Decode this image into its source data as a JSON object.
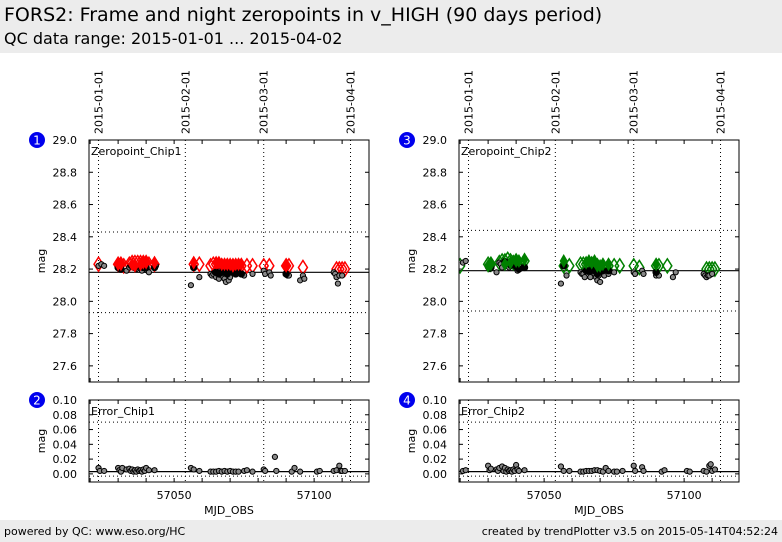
{
  "header": {
    "title": "FORS2: Frame and night zeropoints in v_HIGH (90 days period)",
    "subtitle": "QC data range: 2015-01-01 ... 2015-04-02"
  },
  "footer": {
    "left": "powered by QC: www.eso.org/HC",
    "right": "created by trendPlotter v3.5 on 2015-05-14T04:52:24"
  },
  "colors": {
    "badge": "#0000ee",
    "chip1_marker": "#ff0000",
    "chip2_marker": "#008000",
    "point_fill": "#888888",
    "night_fill": "#000000"
  },
  "chart_data": [
    {
      "id": "1",
      "type": "scatter",
      "title": "Zeropoint_Chip1",
      "badge": "1",
      "xlabel": "",
      "ylabel": "mag",
      "xlim": [
        57019.6,
        57119.6
      ],
      "ylim": [
        27.5,
        29.0
      ],
      "yticks": [
        27.6,
        27.8,
        28.0,
        28.2,
        28.4,
        28.6,
        28.8,
        29.0
      ],
      "ytick_labels": [
        "27.6",
        "27.8",
        "28.0",
        "28.2",
        "28.4",
        "28.6",
        "28.8",
        "29.0"
      ],
      "date_lines": [
        {
          "mjd": 57023,
          "label": "2015-01-01"
        },
        {
          "mjd": 57054,
          "label": "2015-02-01"
        },
        {
          "mjd": 57082,
          "label": "2015-03-01"
        },
        {
          "mjd": 57113,
          "label": "2015-04-01"
        }
      ],
      "reference_line": 28.18,
      "limit_lines": [
        28.43,
        27.93
      ],
      "marker_color": "#ff0000",
      "night_diamonds": {
        "x": [
          57023,
          57030,
          57031,
          57032,
          57034,
          57035,
          57036,
          57037,
          57038,
          57039,
          57040,
          57041,
          57043,
          57057,
          57059,
          57063,
          57064,
          57065,
          57066,
          57067,
          57068,
          57069,
          57071,
          57073,
          57074,
          57076,
          57078,
          57082,
          57084,
          57090,
          57091,
          57096,
          57108,
          57109,
          57110,
          57111
        ],
        "y": [
          28.23,
          28.23,
          28.23,
          28.22,
          28.23,
          28.24,
          28.24,
          28.24,
          28.24,
          28.24,
          28.24,
          28.23,
          28.23,
          28.23,
          28.23,
          28.22,
          28.23,
          28.23,
          28.23,
          28.22,
          28.22,
          28.22,
          28.22,
          28.22,
          28.22,
          28.22,
          28.22,
          28.22,
          28.22,
          28.22,
          28.22,
          28.21,
          28.2,
          28.2,
          28.2,
          28.2
        ]
      },
      "frames": {
        "x": [
          57023,
          57024,
          57025,
          57030,
          57030.5,
          57031,
          57033,
          57034,
          57034.5,
          57035,
          57036,
          57036.5,
          57037,
          57038,
          57038.5,
          57039,
          57040,
          57040.5,
          57041,
          57043,
          57043.5,
          57056,
          57057,
          57059,
          57063,
          57063.5,
          57064,
          57064.5,
          57065,
          57065.5,
          57066,
          57066.5,
          57067,
          57067.5,
          57068,
          57068.5,
          57069,
          57069.5,
          57070,
          57071,
          57072,
          57073,
          57075,
          57078,
          57082,
          57082.5,
          57084,
          57084.5,
          57090,
          57090.5,
          57091,
          57095,
          57096,
          57096.5,
          57107,
          57107.5,
          57108,
          57108.5,
          57109,
          57110
        ],
        "y": [
          28.22,
          28.23,
          28.22,
          28.21,
          28.2,
          28.21,
          28.19,
          28.21,
          28.22,
          28.22,
          28.21,
          28.2,
          28.22,
          28.21,
          28.19,
          28.22,
          28.21,
          28.19,
          28.18,
          28.21,
          28.22,
          28.1,
          28.21,
          28.15,
          28.17,
          28.16,
          28.17,
          28.18,
          28.15,
          28.17,
          28.14,
          28.19,
          28.16,
          28.2,
          28.14,
          28.12,
          28.17,
          28.13,
          28.15,
          28.18,
          28.17,
          28.18,
          28.16,
          28.17,
          28.19,
          28.17,
          28.18,
          28.16,
          28.17,
          28.16,
          28.16,
          28.13,
          28.16,
          28.14,
          28.18,
          28.17,
          28.15,
          28.11,
          28.16,
          28.16
        ]
      },
      "nights": {
        "x": [
          57030,
          57031,
          57035,
          57036,
          57038,
          57039,
          57040,
          57043,
          57057,
          57065,
          57066,
          57067,
          57068,
          57069,
          57070,
          57071,
          57072,
          57073,
          57074,
          57090
        ],
        "y": [
          28.21,
          28.2,
          28.22,
          28.21,
          28.22,
          28.21,
          28.21,
          28.21,
          28.21,
          28.18,
          28.17,
          28.18,
          28.18,
          28.17,
          28.19,
          28.18,
          28.17,
          28.18,
          28.17,
          28.17
        ]
      }
    },
    {
      "id": "2",
      "type": "scatter",
      "title": "Error_Chip1",
      "badge": "2",
      "xlabel": "MJD_OBS",
      "ylabel": "mag",
      "xlim": [
        57019.6,
        57119.6
      ],
      "ylim": [
        -0.011,
        0.1
      ],
      "yticks": [
        0.0,
        0.02,
        0.04,
        0.06,
        0.08,
        0.1
      ],
      "ytick_labels": [
        "0.00",
        "0.02",
        "0.04",
        "0.06",
        "0.08",
        "0.10"
      ],
      "xticks": [
        57050,
        57100
      ],
      "xtick_labels": [
        "57050",
        "57100"
      ],
      "date_lines_mjd": [
        57023,
        57054,
        57082,
        57113
      ],
      "reference_line": 0.003,
      "limit_lines": [
        0.07,
        -0.003
      ],
      "frames": {
        "x": [
          57023,
          57023.5,
          57025,
          57030,
          57030.5,
          57031,
          57031.5,
          57033,
          57034,
          57034.5,
          57035,
          57035.5,
          57036,
          57036.5,
          57037,
          57037.5,
          57038,
          57038.5,
          57039,
          57039.5,
          57040,
          57041,
          57043,
          57056,
          57057,
          57059,
          57063,
          57064,
          57065,
          57066,
          57067,
          57068,
          57069,
          57070,
          57071,
          57072,
          57073,
          57075,
          57076,
          57078,
          57082,
          57082.5,
          57086,
          57086.5,
          57092,
          57093,
          57095,
          57101,
          57102,
          57107,
          57108,
          57109,
          57109.5,
          57110,
          57111
        ],
        "y": [
          0.008,
          0.004,
          0.004,
          0.008,
          0.005,
          0.003,
          0.008,
          0.006,
          0.007,
          0.004,
          0.006,
          0.003,
          0.005,
          0.003,
          0.006,
          0.004,
          0.005,
          0.003,
          0.006,
          0.004,
          0.008,
          0.005,
          0.005,
          0.008,
          0.006,
          0.004,
          0.003,
          0.003,
          0.003,
          0.004,
          0.003,
          0.004,
          0.003,
          0.004,
          0.003,
          0.003,
          0.003,
          0.004,
          0.005,
          0.003,
          0.006,
          0.004,
          0.023,
          0.004,
          0.003,
          0.008,
          0.003,
          0.003,
          0.004,
          0.004,
          0.005,
          0.011,
          0.004,
          0.004,
          0.004
        ]
      }
    },
    {
      "id": "3",
      "type": "scatter",
      "title": "Zeropoint_Chip2",
      "badge": "3",
      "xlabel": "",
      "ylabel": "mag",
      "xlim": [
        57019.6,
        57119.6
      ],
      "ylim": [
        27.5,
        29.0
      ],
      "yticks": [
        27.6,
        27.8,
        28.0,
        28.2,
        28.4,
        28.6,
        28.8,
        29.0
      ],
      "ytick_labels": [
        "27.6",
        "27.8",
        "28.0",
        "28.2",
        "28.4",
        "28.6",
        "28.8",
        "29.0"
      ],
      "date_lines": [
        {
          "mjd": 57023,
          "label": "2015-01-01"
        },
        {
          "mjd": 57054,
          "label": "2015-02-01"
        },
        {
          "mjd": 57082,
          "label": "2015-03-01"
        },
        {
          "mjd": 57113,
          "label": "2015-04-01"
        }
      ],
      "reference_line": 28.19,
      "limit_lines": [
        28.44,
        27.94
      ],
      "marker_color": "#008000",
      "night_diamonds": {
        "x": [
          57020,
          57030,
          57031,
          57034,
          57035,
          57036,
          57037,
          57038,
          57039,
          57040,
          57041,
          57043,
          57057,
          57059,
          57063,
          57064,
          57065,
          57066,
          57067,
          57068,
          57069,
          57071,
          57073,
          57075,
          57077,
          57082,
          57084,
          57090,
          57091,
          57094,
          57108,
          57109,
          57110,
          57111
        ],
        "y": [
          28.22,
          28.23,
          28.23,
          28.24,
          28.25,
          28.25,
          28.26,
          28.25,
          28.24,
          28.25,
          28.24,
          28.25,
          28.22,
          28.22,
          28.23,
          28.23,
          28.23,
          28.23,
          28.23,
          28.22,
          28.22,
          28.22,
          28.22,
          28.22,
          28.22,
          28.22,
          28.21,
          28.22,
          28.22,
          28.22,
          28.2,
          28.2,
          28.2,
          28.2
        ]
      },
      "frames": {
        "x": [
          57021,
          57022,
          57030,
          57030.5,
          57033,
          57034,
          57034.5,
          57035,
          57036,
          57036.5,
          57037,
          57037.5,
          57038,
          57039,
          57040,
          57040.5,
          57041,
          57043,
          57056,
          57058,
          57063,
          57063.5,
          57064,
          57064.5,
          57065,
          57066,
          57066.5,
          57067,
          57068,
          57068.5,
          57069,
          57069.5,
          57070,
          57071,
          57071.5,
          57073,
          57075,
          57082,
          57082.5,
          57085,
          57085.5,
          57090,
          57091,
          57096,
          57097,
          57107,
          57107.5,
          57108,
          57108.5,
          57109,
          57110
        ],
        "y": [
          28.24,
          28.25,
          28.21,
          28.2,
          28.18,
          28.24,
          28.23,
          28.21,
          28.25,
          28.22,
          28.24,
          28.21,
          28.22,
          28.23,
          28.21,
          28.19,
          28.22,
          28.21,
          28.11,
          28.16,
          28.18,
          28.17,
          28.17,
          28.15,
          28.19,
          28.18,
          28.15,
          28.2,
          28.17,
          28.15,
          28.13,
          28.16,
          28.12,
          28.18,
          28.16,
          28.17,
          28.18,
          28.18,
          28.17,
          28.19,
          28.17,
          28.16,
          28.16,
          28.15,
          28.18,
          28.17,
          28.16,
          28.15,
          28.16,
          28.16,
          28.17
        ]
      },
      "nights": {
        "x": [
          57030,
          57031,
          57036,
          57038,
          57040,
          57041,
          57043,
          57057,
          57065,
          57066,
          57067,
          57068,
          57069,
          57070,
          57071,
          57073,
          57090
        ],
        "y": [
          28.22,
          28.21,
          28.24,
          28.23,
          28.22,
          28.2,
          28.21,
          28.22,
          28.19,
          28.19,
          28.2,
          28.19,
          28.17,
          28.2,
          28.19,
          28.19,
          28.18
        ]
      }
    },
    {
      "id": "4",
      "type": "scatter",
      "title": "Error_Chip2",
      "badge": "4",
      "xlabel": "MJD_OBS",
      "ylabel": "mag",
      "xlim": [
        57019.6,
        57119.6
      ],
      "ylim": [
        -0.011,
        0.1
      ],
      "yticks": [
        0.0,
        0.02,
        0.04,
        0.06,
        0.08,
        0.1
      ],
      "ytick_labels": [
        "0.00",
        "0.02",
        "0.04",
        "0.06",
        "0.08",
        "0.10"
      ],
      "xticks": [
        57050,
        57100
      ],
      "xtick_labels": [
        "57050",
        "57100"
      ],
      "date_lines_mjd": [
        57023,
        57054,
        57082,
        57113
      ],
      "reference_line": 0.003,
      "limit_lines": [
        0.07,
        -0.003
      ],
      "frames": {
        "x": [
          57021,
          57022,
          57030,
          57030.5,
          57031,
          57033,
          57033.5,
          57034,
          57035,
          57035.5,
          57036,
          57036.5,
          57037,
          57037.5,
          57038,
          57038.5,
          57039,
          57039.5,
          57040,
          57040.5,
          57041,
          57043,
          57056,
          57057,
          57059,
          57063,
          57064,
          57065,
          57066,
          57067,
          57068,
          57069,
          57070,
          57071,
          57072,
          57073,
          57075,
          57076,
          57078,
          57082,
          57082.5,
          57085,
          57085.5,
          57092,
          57093,
          57101,
          57102,
          57107,
          57108,
          57109,
          57109.5,
          57110,
          57111
        ],
        "y": [
          0.004,
          0.005,
          0.011,
          0.005,
          0.007,
          0.006,
          0.004,
          0.008,
          0.01,
          0.004,
          0.008,
          0.003,
          0.006,
          0.004,
          0.005,
          0.003,
          0.006,
          0.004,
          0.012,
          0.006,
          0.004,
          0.005,
          0.01,
          0.004,
          0.004,
          0.003,
          0.003,
          0.004,
          0.004,
          0.004,
          0.005,
          0.005,
          0.004,
          0.003,
          0.008,
          0.004,
          0.003,
          0.003,
          0.004,
          0.011,
          0.004,
          0.009,
          0.004,
          0.003,
          0.005,
          0.004,
          0.003,
          0.004,
          0.003,
          0.011,
          0.013,
          0.004,
          0.006
        ]
      }
    }
  ]
}
